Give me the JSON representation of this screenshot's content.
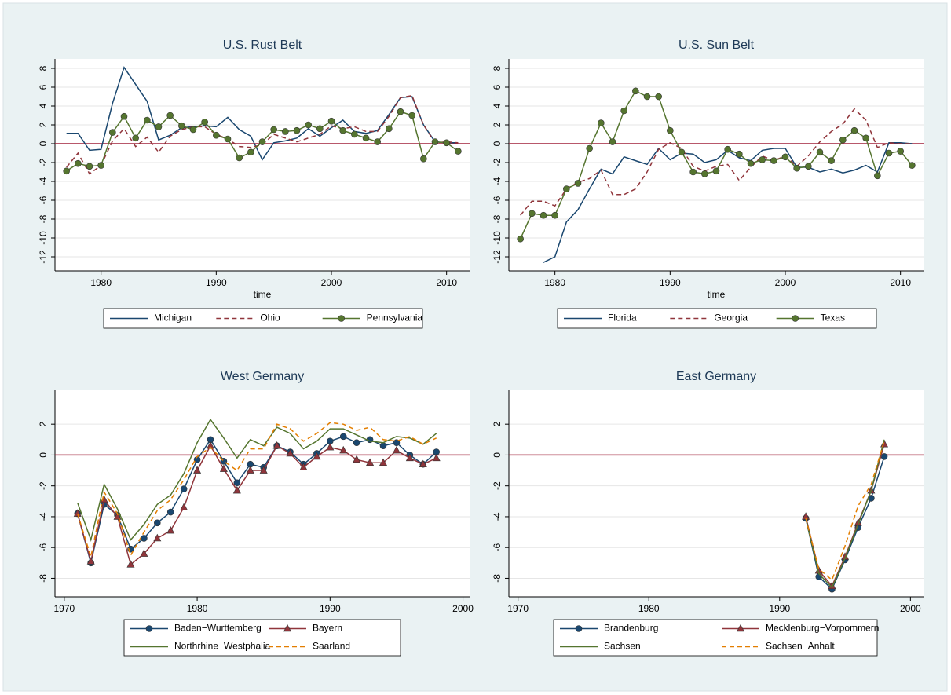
{
  "chart_data": [
    {
      "type": "line",
      "title": "U.S. Rust Belt",
      "xlabel": "time",
      "x": [
        1977,
        1978,
        1979,
        1980,
        1981,
        1982,
        1983,
        1984,
        1985,
        1986,
        1987,
        1988,
        1989,
        1990,
        1991,
        1992,
        1993,
        1994,
        1995,
        1996,
        1997,
        1998,
        1999,
        2000,
        2001,
        2002,
        2003,
        2004,
        2005,
        2006,
        2007,
        2008,
        2009,
        2010,
        2011
      ],
      "xlim": [
        1976,
        2012
      ],
      "xticks": [
        1980,
        1990,
        2000,
        2010
      ],
      "ylim": [
        -13.5,
        9
      ],
      "yticks": [
        -12,
        -10,
        -8,
        -6,
        -4,
        -2,
        0,
        2,
        4,
        6,
        8
      ],
      "grid": true,
      "yline": 0,
      "yline_color": "#a0213a",
      "legend_cols": 3,
      "series": [
        {
          "name": "Michigan",
          "color": "#1a476f",
          "dash": false,
          "marker": "none",
          "values": [
            1.1,
            1.1,
            -0.7,
            -0.6,
            4.3,
            8.1,
            6.3,
            4.5,
            0.4,
            0.9,
            1.7,
            1.8,
            1.9,
            1.8,
            2.8,
            1.5,
            0.8,
            -1.7,
            0.1,
            0.3,
            0.6,
            1.6,
            0.8,
            1.7,
            2.5,
            1.3,
            1.1,
            1.4,
            3.1,
            4.9,
            5.0,
            2.0,
            0.2,
            0.1,
            0.1
          ]
        },
        {
          "name": "Ohio",
          "color": "#90353b",
          "dash": true,
          "marker": "none",
          "values": [
            -2.5,
            -1.0,
            -3.2,
            -2.3,
            0.3,
            1.6,
            -0.3,
            0.7,
            -0.9,
            0.8,
            1.5,
            1.8,
            1.8,
            1.0,
            0.5,
            -0.3,
            -0.4,
            -0.1,
            1.0,
            0.6,
            0.2,
            0.6,
            1.0,
            1.9,
            1.6,
            1.8,
            1.3,
            1.3,
            2.9,
            4.9,
            5.1,
            2.0,
            0.1,
            0.2,
            0.1
          ]
        },
        {
          "name": "Pennsylvania",
          "color": "#55752f",
          "dash": false,
          "marker": "circle",
          "values": [
            -2.9,
            -2.1,
            -2.4,
            -2.3,
            1.2,
            2.9,
            0.6,
            2.5,
            1.8,
            3.0,
            1.9,
            1.5,
            2.3,
            0.9,
            0.5,
            -1.5,
            -0.9,
            0.2,
            1.5,
            1.3,
            1.4,
            2.0,
            1.6,
            2.4,
            1.4,
            1.0,
            0.6,
            0.2,
            1.6,
            3.4,
            3.0,
            -1.6,
            0.2,
            0.1,
            -0.8
          ]
        }
      ]
    },
    {
      "type": "line",
      "title": "U.S. Sun Belt",
      "xlabel": "time",
      "x": [
        1977,
        1978,
        1979,
        1980,
        1981,
        1982,
        1983,
        1984,
        1985,
        1986,
        1987,
        1988,
        1989,
        1990,
        1991,
        1992,
        1993,
        1994,
        1995,
        1996,
        1997,
        1998,
        1999,
        2000,
        2001,
        2002,
        2003,
        2004,
        2005,
        2006,
        2007,
        2008,
        2009,
        2010,
        2011
      ],
      "xlim": [
        1976,
        2012
      ],
      "xticks": [
        1980,
        1990,
        2000,
        2010
      ],
      "ylim": [
        -13.5,
        9
      ],
      "yticks": [
        -12,
        -10,
        -8,
        -6,
        -4,
        -2,
        0,
        2,
        4,
        6,
        8
      ],
      "grid": true,
      "yline": 0,
      "yline_color": "#a0213a",
      "legend_cols": 3,
      "series": [
        {
          "name": "Florida",
          "color": "#1a476f",
          "dash": false,
          "marker": "none",
          "values": [
            null,
            null,
            -12.6,
            -12.0,
            -8.3,
            -7.0,
            -4.8,
            -2.7,
            -3.2,
            -1.4,
            -1.8,
            -2.2,
            -0.5,
            -1.7,
            -1.0,
            -1.1,
            -2.0,
            -1.7,
            -0.7,
            -1.5,
            -1.8,
            -0.7,
            -0.5,
            -0.5,
            -2.5,
            -2.5,
            -3.0,
            -2.7,
            -3.1,
            -2.8,
            -2.3,
            -3.0,
            0.1,
            0.1,
            0.0
          ]
        },
        {
          "name": "Georgia",
          "color": "#90353b",
          "dash": true,
          "marker": "none",
          "values": [
            -7.6,
            -6.1,
            -6.1,
            -6.6,
            -4.8,
            -4.1,
            -3.7,
            -2.8,
            -5.4,
            -5.4,
            -4.8,
            -3.0,
            -0.6,
            0.1,
            -0.5,
            -2.4,
            -2.9,
            -2.4,
            -2.2,
            -3.9,
            -2.5,
            -1.3,
            -1.8,
            -1.3,
            -2.4,
            -1.3,
            0.2,
            1.3,
            2.1,
            3.7,
            2.5,
            -0.4,
            0.1,
            0.0,
            0.0
          ]
        },
        {
          "name": "Texas",
          "color": "#55752f",
          "dash": false,
          "marker": "circle",
          "values": [
            -10.1,
            -7.4,
            -7.6,
            -7.6,
            -4.8,
            -4.2,
            -0.5,
            2.2,
            0.2,
            3.5,
            5.6,
            5.0,
            5.0,
            1.4,
            -0.9,
            -3.0,
            -3.2,
            -2.9,
            -0.6,
            -1.1,
            -2.1,
            -1.7,
            -1.8,
            -1.4,
            -2.6,
            -2.4,
            -0.9,
            -1.8,
            0.4,
            1.4,
            0.6,
            -3.4,
            -1.0,
            -0.8,
            -2.3
          ]
        }
      ]
    },
    {
      "type": "line",
      "title": "West Germany",
      "x": [
        1971,
        1972,
        1973,
        1974,
        1975,
        1976,
        1977,
        1978,
        1979,
        1980,
        1981,
        1982,
        1983,
        1984,
        1985,
        1986,
        1987,
        1988,
        1989,
        1990,
        1991,
        1992,
        1993,
        1994,
        1995,
        1996,
        1997,
        1998
      ],
      "xlim": [
        1969.3,
        2000.5
      ],
      "xticks": [
        1970,
        1980,
        1990,
        2000
      ],
      "ylim": [
        -9.2,
        4.2
      ],
      "yticks": [
        -8,
        -6,
        -4,
        -2,
        0,
        2
      ],
      "grid": true,
      "yline": 0,
      "yline_color": "#a0213a",
      "legend_cols": 2,
      "series": [
        {
          "name": "Baden−Wurttemberg",
          "color": "#1a476f",
          "dash": false,
          "marker": "circle",
          "values": [
            -3.8,
            -7.0,
            -3.2,
            -3.9,
            -6.1,
            -5.4,
            -4.4,
            -3.7,
            -2.2,
            -0.3,
            1.0,
            -0.4,
            -1.8,
            -0.6,
            -0.8,
            0.6,
            0.2,
            -0.6,
            0.1,
            0.9,
            1.2,
            0.8,
            1.0,
            0.6,
            0.8,
            0.0,
            -0.6,
            0.2
          ]
        },
        {
          "name": "Bayern",
          "color": "#90353b",
          "dash": false,
          "marker": "triangle",
          "values": [
            -3.8,
            -6.9,
            -2.9,
            -4.0,
            -7.1,
            -6.4,
            -5.4,
            -4.9,
            -3.4,
            -1.0,
            0.6,
            -0.9,
            -2.3,
            -1.0,
            -1.0,
            0.6,
            0.1,
            -0.8,
            -0.1,
            0.5,
            0.3,
            -0.3,
            -0.5,
            -0.5,
            0.3,
            -0.2,
            -0.6,
            -0.2
          ]
        },
        {
          "name": "Northrhine−Westphalia",
          "color": "#55752f",
          "dash": false,
          "marker": "none",
          "values": [
            -3.1,
            -5.5,
            -1.9,
            -3.5,
            -5.5,
            -4.5,
            -3.2,
            -2.6,
            -1.2,
            0.8,
            2.3,
            1.1,
            -0.2,
            1.0,
            0.6,
            1.8,
            1.4,
            0.4,
            0.9,
            1.7,
            1.7,
            1.3,
            0.9,
            0.8,
            1.2,
            1.1,
            0.7,
            1.4
          ]
        },
        {
          "name": "Saarland",
          "color": "#e37e00",
          "dash": true,
          "marker": "none",
          "values": [
            -3.8,
            -6.6,
            -2.4,
            -3.8,
            -6.5,
            -5.0,
            -3.6,
            -2.9,
            -1.6,
            -0.1,
            0.5,
            -0.4,
            -1.0,
            0.4,
            0.4,
            2.0,
            1.7,
            0.9,
            1.4,
            2.1,
            2.0,
            1.6,
            1.8,
            1.0,
            0.9,
            1.2,
            0.7,
            1.1
          ]
        }
      ]
    },
    {
      "type": "line",
      "title": "East Germany",
      "x": [
        1992,
        1993,
        1994,
        1995,
        1996,
        1997,
        1998
      ],
      "xlim": [
        1969.3,
        2001
      ],
      "xticks": [
        1970,
        1980,
        1990,
        2000
      ],
      "ylim": [
        -9.2,
        4.2
      ],
      "yticks": [
        -8,
        -6,
        -4,
        -2,
        0,
        2
      ],
      "grid": true,
      "yline": 0,
      "yline_color": "#a0213a",
      "legend_cols": 2,
      "series": [
        {
          "name": "Brandenburg",
          "color": "#1a476f",
          "dash": false,
          "marker": "circle",
          "values": [
            -4.1,
            -7.9,
            -8.7,
            -6.8,
            -4.7,
            -2.8,
            -0.1
          ]
        },
        {
          "name": "Mecklenburg−Vorpommern",
          "color": "#90353b",
          "dash": false,
          "marker": "triangle",
          "values": [
            -4.0,
            -7.5,
            -8.5,
            -6.6,
            -4.4,
            -2.3,
            0.7
          ]
        },
        {
          "name": "Sachsen",
          "color": "#55752f",
          "dash": false,
          "marker": "none",
          "values": [
            -4.1,
            -7.7,
            -8.6,
            -6.7,
            -4.5,
            -2.3,
            1.0
          ]
        },
        {
          "name": "Sachsen−Anhalt",
          "color": "#e37e00",
          "dash": true,
          "marker": "none",
          "values": [
            -4.1,
            -7.4,
            -8.1,
            -5.9,
            -3.3,
            -1.9,
            0.9
          ]
        }
      ]
    }
  ]
}
